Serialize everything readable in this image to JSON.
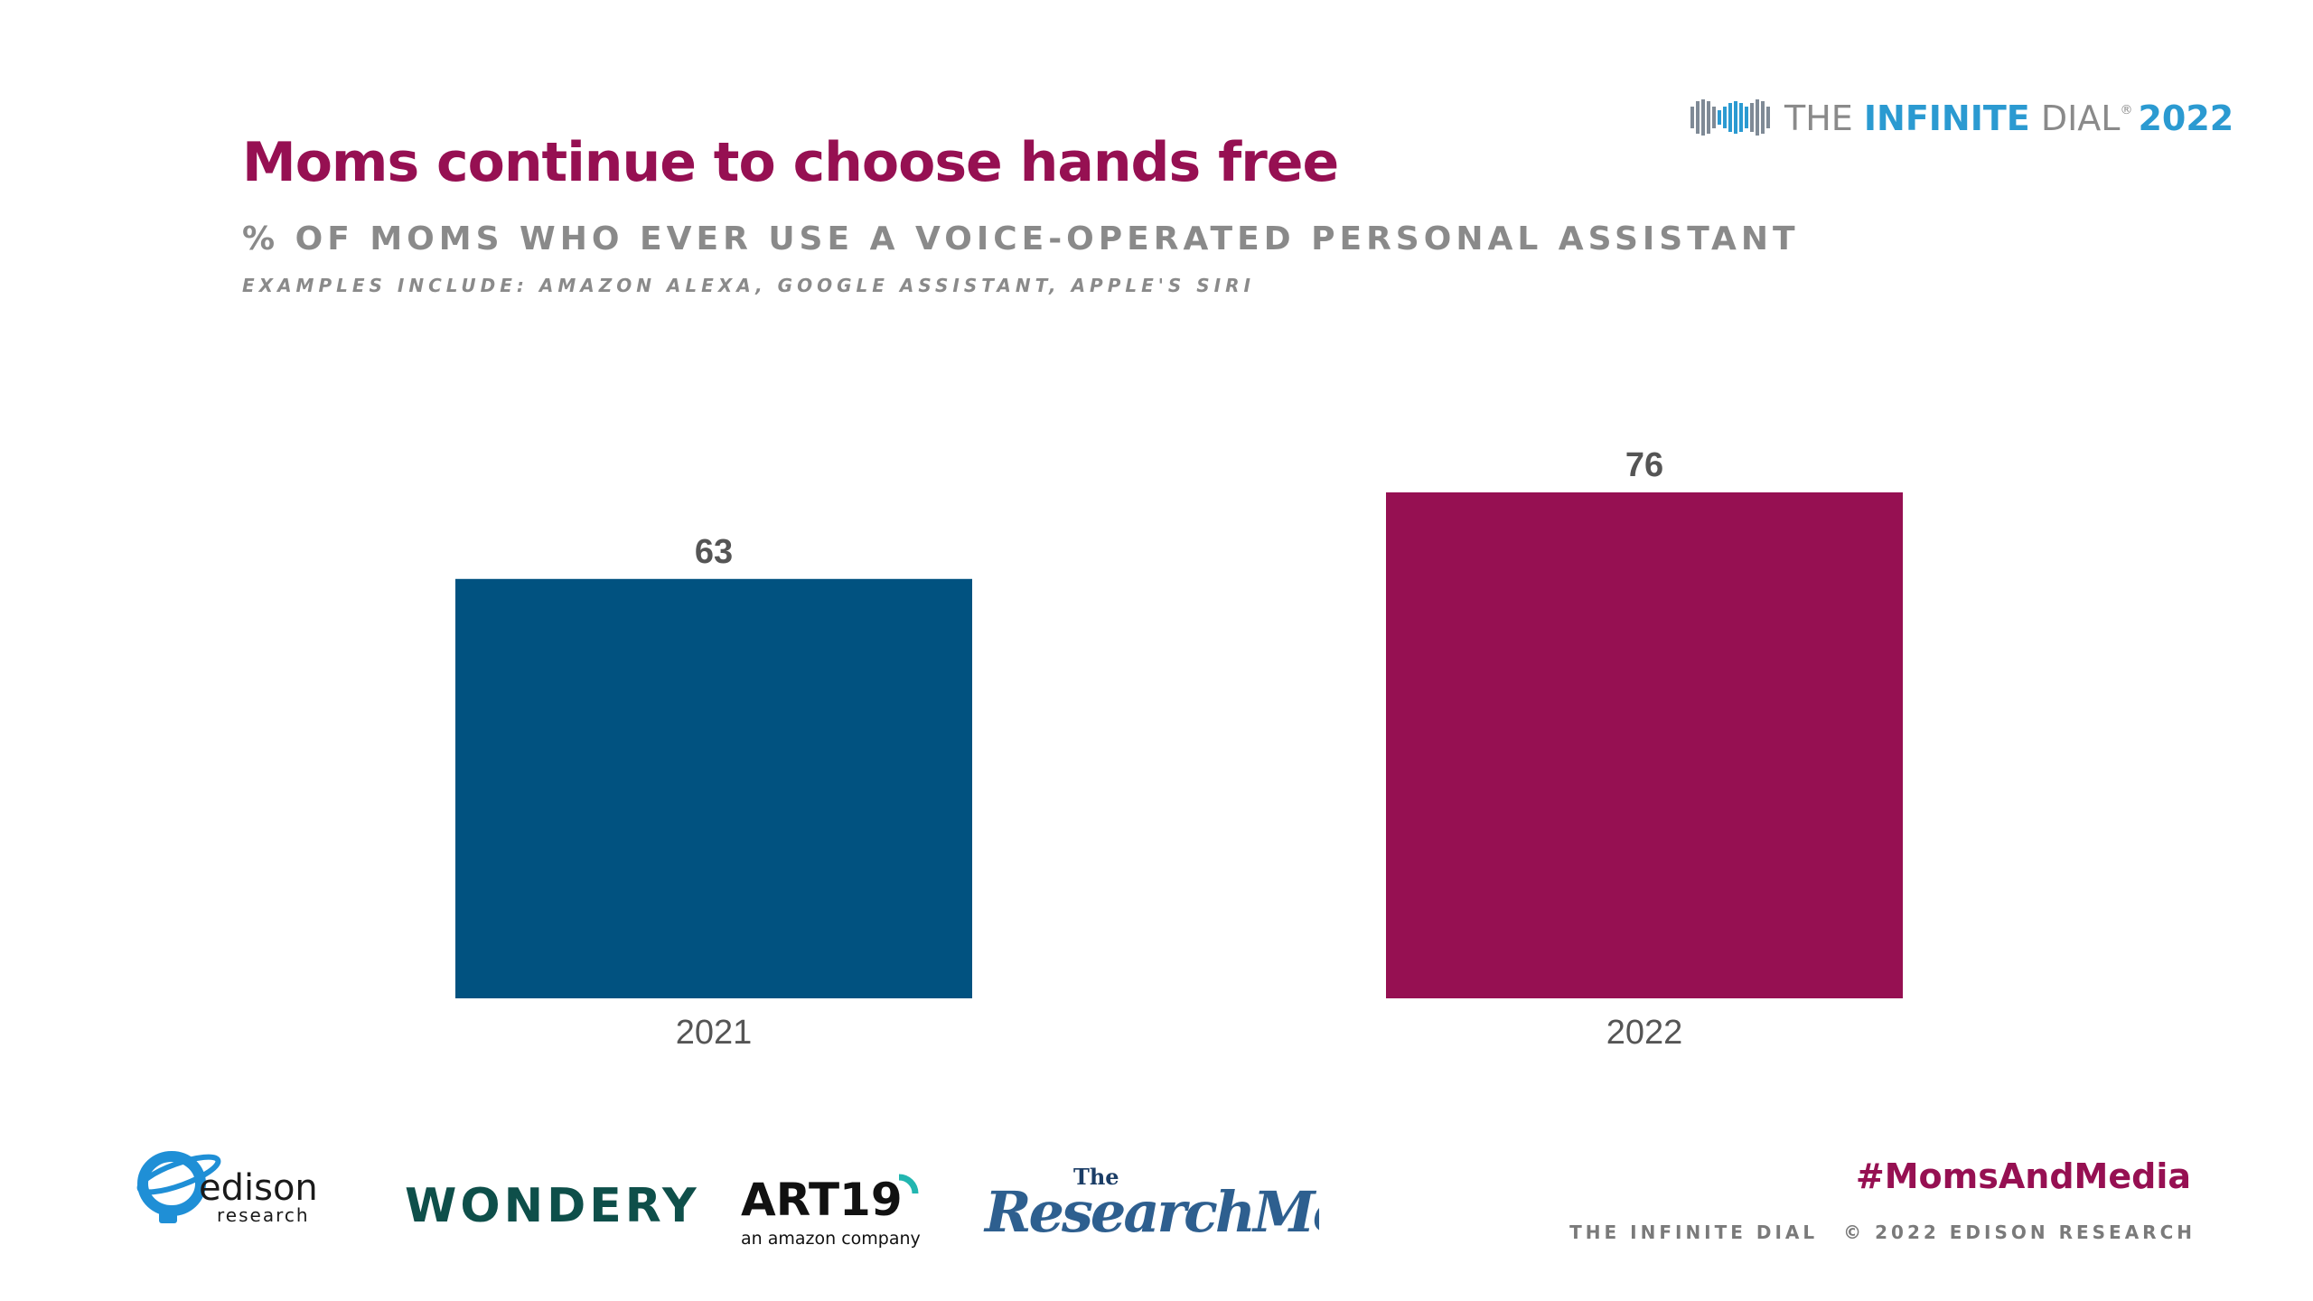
{
  "header": {
    "title": "Moms continue to choose hands free",
    "subtitle": "% OF MOMS WHO EVER USE A VOICE-OPERATED PERSONAL ASSISTANT",
    "examples": "EXAMPLES INCLUDE:  AMAZON ALEXA, GOOGLE ASSISTANT, APPLE'S SIRI"
  },
  "brand": {
    "prefix": "THE ",
    "infinite": "INFINITE",
    "dial": " DIAL",
    "registered": "®",
    "year": "2022",
    "color_primary": "#2b9ad1",
    "color_gray": "#8a8a8a"
  },
  "chart_data": {
    "type": "bar",
    "title": "% OF MOMS WHO EVER USE A VOICE-OPERATED PERSONAL ASSISTANT",
    "categories": [
      "2021",
      "2022"
    ],
    "values": [
      63,
      76
    ],
    "colors": [
      "#015280",
      "#961052"
    ],
    "xlabel": "",
    "ylabel": "",
    "ylim": [
      0,
      76
    ],
    "grid": false,
    "legend": "none"
  },
  "footer": {
    "hashtag": "#MomsAndMedia",
    "dial": "THE INFINITE DIAL",
    "copyright": "© 2022 EDISON RESEARCH"
  },
  "sponsors": {
    "edison_name": "edison",
    "edison_sub": "research",
    "wondery": "WONDERY",
    "art19": "ART19",
    "art19_sub": "an amazon company",
    "research_moms_the": "The",
    "research_moms": "ResearchMoms"
  }
}
